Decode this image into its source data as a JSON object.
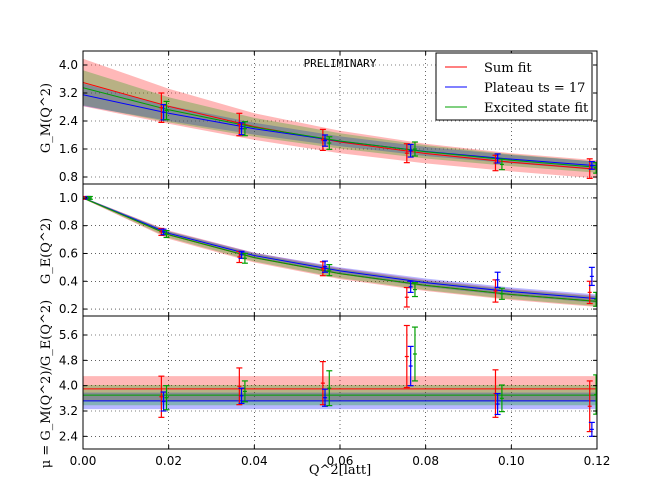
{
  "chart_data": [
    {
      "type": "line",
      "panel": "top",
      "ylabel": "G_M(Q^2)",
      "ylim": [
        0.6,
        4.4
      ],
      "yticks": [
        "0.8",
        "1.6",
        "2.4",
        "3.2",
        "4.0"
      ],
      "xlim": [
        0.0,
        0.12
      ],
      "annotation": "PRELIMINARY",
      "grid": true,
      "series": [
        {
          "name": "Sum fit",
          "color": "#ff0000",
          "points": [
            [
              0.0183,
              2.78,
              0.42
            ],
            [
              0.0365,
              2.3,
              0.32
            ],
            [
              0.056,
              1.86,
              0.3
            ],
            [
              0.0756,
              1.48,
              0.27
            ],
            [
              0.0963,
              1.2,
              0.22
            ],
            [
              0.1183,
              1.04,
              0.28
            ]
          ],
          "band": [
            [
              0.0,
              3.5,
              0.68
            ],
            [
              0.02,
              2.82,
              0.5
            ],
            [
              0.04,
              2.24,
              0.38
            ],
            [
              0.06,
              1.8,
              0.32
            ],
            [
              0.08,
              1.47,
              0.28
            ],
            [
              0.1,
              1.22,
              0.26
            ],
            [
              0.12,
              1.02,
              0.26
            ]
          ]
        },
        {
          "name": "Plateau ts = 17",
          "color": "#0000ff",
          "points": [
            [
              0.0188,
              2.65,
              0.22
            ],
            [
              0.037,
              2.18,
              0.17
            ],
            [
              0.0565,
              1.84,
              0.16
            ],
            [
              0.0765,
              1.55,
              0.18
            ],
            [
              0.0968,
              1.33,
              0.13
            ],
            [
              0.1188,
              1.13,
              0.11
            ]
          ],
          "band": [
            [
              0.0,
              3.15,
              0.32
            ],
            [
              0.02,
              2.62,
              0.22
            ],
            [
              0.04,
              2.18,
              0.17
            ],
            [
              0.06,
              1.82,
              0.14
            ],
            [
              0.08,
              1.53,
              0.13
            ],
            [
              0.1,
              1.31,
              0.12
            ],
            [
              0.12,
              1.12,
              0.12
            ]
          ]
        },
        {
          "name": "Excited state fit",
          "color": "#00a000",
          "points": [
            [
              0.0195,
              2.7,
              0.26
            ],
            [
              0.0378,
              2.18,
              0.2
            ],
            [
              0.0575,
              1.77,
              0.18
            ],
            [
              0.0775,
              1.6,
              0.2
            ],
            [
              0.0978,
              1.16,
              0.15
            ],
            [
              0.1198,
              1.06,
              0.15
            ]
          ],
          "band": [
            [
              0.0,
              3.35,
              0.5
            ],
            [
              0.02,
              2.72,
              0.36
            ],
            [
              0.04,
              2.22,
              0.27
            ],
            [
              0.06,
              1.83,
              0.22
            ],
            [
              0.08,
              1.52,
              0.19
            ],
            [
              0.1,
              1.28,
              0.17
            ],
            [
              0.12,
              1.08,
              0.16
            ]
          ]
        }
      ]
    },
    {
      "type": "line",
      "panel": "middle",
      "ylabel": "G_E(Q^2)",
      "ylim": [
        0.15,
        1.1
      ],
      "yticks": [
        "0.2",
        "0.4",
        "0.6",
        "0.8",
        "1.0"
      ],
      "xlim": [
        0.0,
        0.12
      ],
      "grid": true,
      "series": [
        {
          "name": "Sum fit",
          "color": "#ff0000",
          "points": [
            [
              0.0008,
              1.0,
              0.01
            ],
            [
              0.0183,
              0.755,
              0.025
            ],
            [
              0.0365,
              0.575,
              0.04
            ],
            [
              0.056,
              0.49,
              0.05
            ],
            [
              0.0756,
              0.285,
              0.07
            ],
            [
              0.0963,
              0.33,
              0.08
            ],
            [
              0.1183,
              0.32,
              0.08
            ]
          ],
          "band": [
            [
              0.0,
              1.0,
              0.005
            ],
            [
              0.02,
              0.735,
              0.03
            ],
            [
              0.04,
              0.57,
              0.035
            ],
            [
              0.06,
              0.455,
              0.04
            ],
            [
              0.08,
              0.37,
              0.04
            ],
            [
              0.1,
              0.305,
              0.04
            ],
            [
              0.12,
              0.255,
              0.04
            ]
          ]
        },
        {
          "name": "Plateau ts = 17",
          "color": "#0000ff",
          "points": [
            [
              0.0012,
              1.0,
              0.01
            ],
            [
              0.0188,
              0.755,
              0.02
            ],
            [
              0.037,
              0.59,
              0.025
            ],
            [
              0.0565,
              0.505,
              0.04
            ],
            [
              0.0765,
              0.36,
              0.04
            ],
            [
              0.0968,
              0.41,
              0.055
            ],
            [
              0.1188,
              0.435,
              0.065
            ]
          ],
          "band": [
            [
              0.0,
              1.0,
              0.005
            ],
            [
              0.02,
              0.745,
              0.015
            ],
            [
              0.04,
              0.585,
              0.02
            ],
            [
              0.06,
              0.475,
              0.025
            ],
            [
              0.08,
              0.39,
              0.03
            ],
            [
              0.1,
              0.325,
              0.03
            ],
            [
              0.12,
              0.275,
              0.03
            ]
          ]
        },
        {
          "name": "Excited state fit",
          "color": "#00a000",
          "points": [
            [
              0.0016,
              1.0,
              0.01
            ],
            [
              0.0195,
              0.74,
              0.025
            ],
            [
              0.0378,
              0.565,
              0.035
            ],
            [
              0.0575,
              0.48,
              0.04
            ],
            [
              0.0775,
              0.34,
              0.05
            ],
            [
              0.0978,
              0.31,
              0.04
            ],
            [
              0.1198,
              0.27,
              0.05
            ]
          ],
          "band": [
            [
              0.0,
              1.0,
              0.005
            ],
            [
              0.02,
              0.735,
              0.022
            ],
            [
              0.04,
              0.57,
              0.028
            ],
            [
              0.06,
              0.455,
              0.032
            ],
            [
              0.08,
              0.37,
              0.034
            ],
            [
              0.1,
              0.305,
              0.034
            ],
            [
              0.12,
              0.255,
              0.034
            ]
          ]
        }
      ]
    },
    {
      "type": "line",
      "panel": "bottom",
      "ylabel": "μ = G_M(Q^2)/G_E(Q^2)",
      "ylim": [
        2.0,
        6.2
      ],
      "yticks": [
        "2.4",
        "3.2",
        "4.0",
        "4.8",
        "5.6"
      ],
      "xlim": [
        0.0,
        0.12
      ],
      "xticks": [
        "0.00",
        "0.02",
        "0.04",
        "0.06",
        "0.08",
        "0.10",
        "0.12"
      ],
      "xlabel": "Q^2[latt]",
      "grid": true,
      "series": [
        {
          "name": "Sum fit",
          "color": "#ff0000",
          "points": [
            [
              0.0183,
              3.65,
              0.65
            ],
            [
              0.0365,
              3.98,
              0.58
            ],
            [
              0.056,
              4.08,
              0.68
            ],
            [
              0.0756,
              4.92,
              0.98
            ],
            [
              0.0963,
              3.75,
              0.75
            ],
            [
              0.1183,
              3.35,
              0.8
            ]
          ],
          "band": [
            [
              0.0,
              3.9,
              0.4
            ],
            [
              0.12,
              3.9,
              0.4
            ]
          ]
        },
        {
          "name": "Plateau ts = 17",
          "color": "#0000ff",
          "points": [
            [
              0.0188,
              3.5,
              0.3
            ],
            [
              0.037,
              3.68,
              0.24
            ],
            [
              0.0565,
              3.62,
              0.27
            ],
            [
              0.0765,
              4.62,
              0.62
            ],
            [
              0.0968,
              3.42,
              0.33
            ],
            [
              0.1188,
              2.62,
              0.22
            ]
          ],
          "band": [
            [
              0.0,
              3.52,
              0.26
            ],
            [
              0.12,
              3.52,
              0.26
            ]
          ]
        },
        {
          "name": "Excited state fit",
          "color": "#00a000",
          "points": [
            [
              0.0195,
              3.62,
              0.38
            ],
            [
              0.0378,
              3.82,
              0.33
            ],
            [
              0.0575,
              3.92,
              0.55
            ],
            [
              0.0775,
              5.0,
              0.85
            ],
            [
              0.0978,
              3.6,
              0.42
            ],
            [
              0.1198,
              3.72,
              0.62
            ]
          ],
          "band": [
            [
              0.0,
              3.7,
              0.32
            ],
            [
              0.12,
              3.7,
              0.32
            ]
          ]
        }
      ]
    }
  ],
  "legend": {
    "placement": "top-right",
    "items": [
      {
        "label": "Sum fit",
        "color": "#ff0000"
      },
      {
        "label": "Plateau ts = 17",
        "color": "#0000ff"
      },
      {
        "label": "Excited state fit",
        "color": "#00a000"
      }
    ]
  }
}
